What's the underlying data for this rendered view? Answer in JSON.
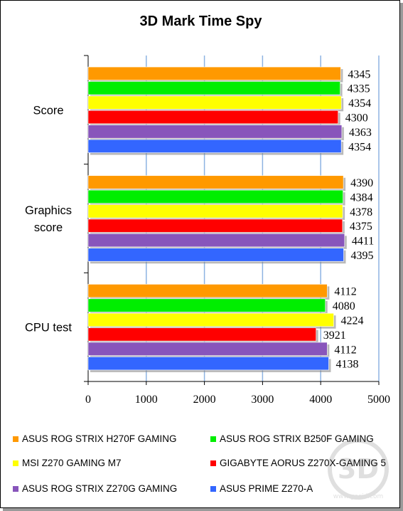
{
  "chart_data": {
    "type": "bar",
    "orientation": "horizontal",
    "title": "3D Mark Time Spy",
    "categories": [
      "Score",
      "Graphics score",
      "CPU test"
    ],
    "category_lines": [
      [
        "Score"
      ],
      [
        "Graphics",
        "score"
      ],
      [
        "CPU test"
      ]
    ],
    "series": [
      {
        "name": "ASUS ROG STRIX H270F GAMING",
        "color": "#ff9900",
        "values": [
          4345,
          4390,
          4112
        ]
      },
      {
        "name": "ASUS ROG STRIX B250F GAMING",
        "color": "#00ee00",
        "values": [
          4335,
          4384,
          4080
        ]
      },
      {
        "name": "MSI Z270 GAMING M7",
        "color": "#ffff00",
        "values": [
          4354,
          4378,
          4224
        ]
      },
      {
        "name": "GIGABYTE AORUS Z270X-GAMING 5",
        "color": "#ff0000",
        "values": [
          4300,
          4375,
          3921
        ]
      },
      {
        "name": "ASUS ROG STRIX Z270G GAMING",
        "color": "#8855bb",
        "values": [
          4363,
          4411,
          4112
        ]
      },
      {
        "name": "ASUS PRIME Z270-A",
        "color": "#3366ff",
        "values": [
          4354,
          4395,
          4138
        ]
      }
    ],
    "xlim": [
      0,
      5000
    ],
    "x_ticks": [
      0,
      1000,
      2000,
      3000,
      4000,
      5000
    ],
    "grid": "vertical",
    "legend_position": "bottom"
  },
  "watermark": {
    "text": "www.gecid.com"
  }
}
